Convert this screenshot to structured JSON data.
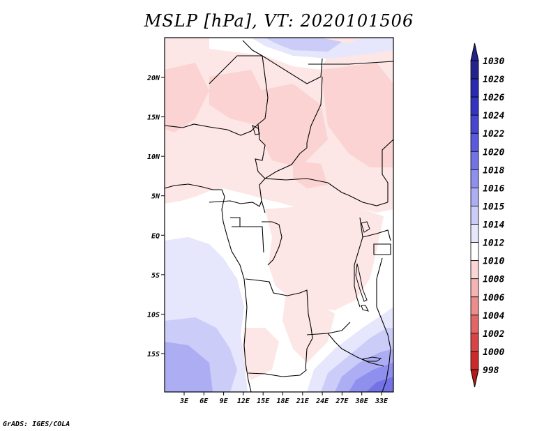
{
  "title": "MSLP [hPa], VT: 2020101506",
  "footer": "GrADS: IGES/COLA",
  "axes": {
    "lat_labels": [
      "20N",
      "15N",
      "10N",
      "5N",
      "EQ",
      "5S",
      "10S",
      "15S"
    ],
    "lat_values": [
      20,
      15,
      10,
      5,
      0,
      -5,
      -10,
      -15
    ],
    "lon_labels": [
      "3E",
      "6E",
      "9E",
      "12E",
      "15E",
      "18E",
      "21E",
      "24E",
      "27E",
      "30E",
      "33E"
    ],
    "lon_values": [
      3,
      6,
      9,
      12,
      15,
      18,
      21,
      24,
      27,
      30,
      33
    ]
  },
  "colorbar": {
    "levels": [
      "1030",
      "1028",
      "1026",
      "1024",
      "1022",
      "1020",
      "1018",
      "1016",
      "1015",
      "1014",
      "1012",
      "1010",
      "1008",
      "1006",
      "1004",
      "1002",
      "1000",
      "998"
    ],
    "colors": [
      "#23238e",
      "#2a2ab0",
      "#3434c4",
      "#4646d2",
      "#5a5ade",
      "#7373e6",
      "#8f8fee",
      "#adadf4",
      "#ccccf8",
      "#e6e6fc",
      "#ffffff",
      "#fcd6d6",
      "#f5b3b3",
      "#ec8d8d",
      "#e26666",
      "#d84444",
      "#cc2a2a",
      "#b81a1a"
    ]
  }
}
